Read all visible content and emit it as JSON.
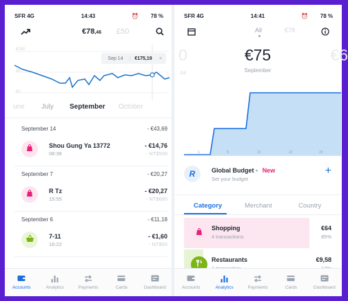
{
  "left": {
    "status": {
      "carrier": "SFR  4G",
      "time": "14:43",
      "battery": "78 %"
    },
    "header": {
      "balance_main": "€78",
      "balance_cents": ",46",
      "balance_secondary": "£50"
    },
    "tooltip": {
      "date": "Sep 14",
      "amount": "€175,19",
      "close": "×"
    },
    "chart_scale": {
      "top": "€150",
      "mid": "90",
      "low": "60"
    },
    "months": [
      "une",
      "July",
      "September",
      "October"
    ],
    "groups": [
      {
        "date": "September 14",
        "total": "- €43,69",
        "txns": [
          {
            "name": "Shou Gung Ya  13772",
            "time": "08:36",
            "amount": "- €14,76",
            "alt": "- NT$500",
            "icon": "shopping-bag-icon",
            "color": "#e91e78",
            "bg": "#fde4ef"
          }
        ]
      },
      {
        "date": "September 7",
        "total": "- €20,27",
        "txns": [
          {
            "name": "R Tz",
            "time": "15:55",
            "amount": "- €20,27",
            "alt": "- NT$690",
            "icon": "shopping-bag-icon",
            "color": "#e91e78",
            "bg": "#fde4ef"
          }
        ]
      },
      {
        "date": "September 6",
        "total": "- €11,18",
        "txns": [
          {
            "name": "7-11",
            "time": "16:22",
            "amount": "- €1,60",
            "alt": "- NT$55",
            "icon": "basket-icon",
            "color": "#7cb518",
            "bg": "#eaf6d7"
          }
        ]
      }
    ],
    "tabs": [
      {
        "label": "Accounts",
        "icon": "wallet-icon",
        "active": true
      },
      {
        "label": "Analytics",
        "icon": "bar-chart-icon",
        "active": false
      },
      {
        "label": "Payments",
        "icon": "transfer-icon",
        "active": false
      },
      {
        "label": "Cards",
        "icon": "card-icon",
        "active": false
      },
      {
        "label": "Dashboard",
        "icon": "dashboard-icon",
        "active": false
      }
    ]
  },
  "right": {
    "status": {
      "carrier": "SFR  4G",
      "time": "14:41",
      "battery": "78 %"
    },
    "header": {
      "filter": "All",
      "secondary": "€78"
    },
    "side_left": "0",
    "side_left_label": "Jul",
    "amount": "€75",
    "period": "September",
    "side_right": "€6",
    "chart_ticks": [
      "1",
      "8",
      "15",
      "22",
      "29"
    ],
    "budget": {
      "title": "Global Budget",
      "dot": "•",
      "new": "New",
      "sub": "Set your budget",
      "plus": "+"
    },
    "cat_tabs": [
      "Category",
      "Merchant",
      "Country"
    ],
    "categories": [
      {
        "name": "Shopping",
        "sub": "4 transactions",
        "amount": "€64",
        "pct": "85%",
        "icon": "shopping-bag-icon",
        "color": "#e91e78",
        "bg": "#fde4ef",
        "share": 0.85
      },
      {
        "name": "Restaurants",
        "sub": "1 transaction",
        "amount": "€9,58",
        "pct": "13%",
        "icon": "cutlery-icon",
        "color": "#ffffff",
        "bg": "#7cb518",
        "share": 0.13
      }
    ],
    "tabs": [
      {
        "label": "Accounts",
        "icon": "wallet-icon",
        "active": false
      },
      {
        "label": "Analytics",
        "icon": "bar-chart-icon",
        "active": true
      },
      {
        "label": "Payments",
        "icon": "transfer-icon",
        "active": false
      },
      {
        "label": "Cards",
        "icon": "card-icon",
        "active": false
      },
      {
        "label": "Dashboard",
        "icon": "dashboard-icon",
        "active": false
      }
    ]
  }
}
